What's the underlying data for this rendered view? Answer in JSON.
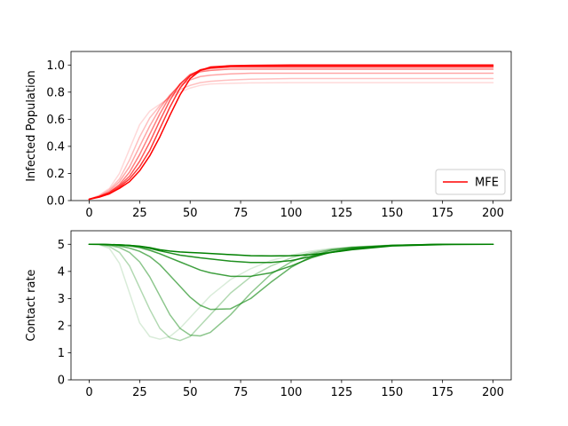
{
  "chart_data": [
    {
      "type": "line",
      "ylabel": "Infected Population",
      "xlim": [
        -9,
        209
      ],
      "ylim": [
        0,
        1.1
      ],
      "xticks": [
        0,
        25,
        50,
        75,
        100,
        125,
        150,
        175,
        200
      ],
      "yticks": [
        0.0,
        0.2,
        0.4,
        0.6,
        0.8,
        1.0
      ],
      "xtick_labels": [
        "0",
        "25",
        "50",
        "75",
        "100",
        "125",
        "150",
        "175",
        "200"
      ],
      "ytick_labels": [
        "0.0",
        "0.2",
        "0.4",
        "0.6",
        "0.8",
        "1.0"
      ],
      "legend": {
        "label": "MFE",
        "placement": "lower-right",
        "color": "#ff0000"
      },
      "series_color": "#ff0000",
      "series": [
        {
          "alpha": 0.15,
          "x": [
            0,
            5,
            10,
            15,
            20,
            25,
            30,
            35,
            40,
            45,
            50,
            55,
            60,
            70,
            80,
            100,
            125,
            150,
            175,
            200
          ],
          "y": [
            0.01,
            0.04,
            0.09,
            0.2,
            0.38,
            0.56,
            0.66,
            0.71,
            0.76,
            0.8,
            0.83,
            0.85,
            0.86,
            0.865,
            0.868,
            0.87,
            0.87,
            0.87,
            0.87,
            0.87
          ]
        },
        {
          "alpha": 0.25,
          "x": [
            0,
            5,
            10,
            15,
            20,
            25,
            30,
            35,
            40,
            45,
            50,
            55,
            60,
            70,
            80,
            100,
            125,
            150,
            175,
            200
          ],
          "y": [
            0.01,
            0.035,
            0.08,
            0.16,
            0.3,
            0.47,
            0.61,
            0.7,
            0.77,
            0.82,
            0.85,
            0.87,
            0.88,
            0.89,
            0.895,
            0.9,
            0.9,
            0.9,
            0.9,
            0.9
          ]
        },
        {
          "alpha": 0.35,
          "x": [
            0,
            5,
            10,
            15,
            20,
            25,
            30,
            35,
            40,
            45,
            50,
            55,
            60,
            70,
            80,
            100,
            125,
            150,
            175,
            200
          ],
          "y": [
            0.01,
            0.03,
            0.07,
            0.14,
            0.25,
            0.4,
            0.55,
            0.68,
            0.78,
            0.85,
            0.89,
            0.915,
            0.925,
            0.935,
            0.94,
            0.94,
            0.94,
            0.94,
            0.94,
            0.94
          ]
        },
        {
          "alpha": 0.5,
          "x": [
            0,
            5,
            10,
            15,
            20,
            25,
            30,
            35,
            40,
            45,
            50,
            55,
            60,
            70,
            80,
            100,
            125,
            150,
            175,
            200
          ],
          "y": [
            0.01,
            0.03,
            0.06,
            0.12,
            0.21,
            0.34,
            0.49,
            0.64,
            0.77,
            0.86,
            0.92,
            0.95,
            0.96,
            0.97,
            0.97,
            0.97,
            0.97,
            0.97,
            0.97,
            0.97
          ]
        },
        {
          "alpha": 0.65,
          "x": [
            0,
            5,
            10,
            15,
            20,
            25,
            30,
            35,
            40,
            45,
            50,
            55,
            60,
            70,
            80,
            100,
            125,
            150,
            175,
            200
          ],
          "y": [
            0.01,
            0.03,
            0.06,
            0.11,
            0.18,
            0.29,
            0.43,
            0.59,
            0.74,
            0.86,
            0.93,
            0.96,
            0.975,
            0.985,
            0.985,
            0.985,
            0.985,
            0.985,
            0.985,
            0.985
          ]
        },
        {
          "alpha": 0.8,
          "x": [
            0,
            5,
            10,
            15,
            20,
            25,
            30,
            35,
            40,
            45,
            50,
            55,
            60,
            70,
            80,
            100,
            125,
            150,
            175,
            200
          ],
          "y": [
            0.01,
            0.03,
            0.05,
            0.1,
            0.16,
            0.25,
            0.37,
            0.53,
            0.69,
            0.83,
            0.92,
            0.965,
            0.98,
            0.99,
            0.99,
            0.99,
            0.99,
            0.99,
            0.99,
            0.99
          ]
        },
        {
          "alpha": 1.0,
          "x": [
            0,
            5,
            10,
            15,
            20,
            25,
            30,
            35,
            40,
            45,
            50,
            55,
            60,
            70,
            80,
            100,
            125,
            150,
            175,
            200
          ],
          "y": [
            0.01,
            0.025,
            0.05,
            0.09,
            0.14,
            0.22,
            0.33,
            0.47,
            0.63,
            0.78,
            0.9,
            0.96,
            0.985,
            0.995,
            0.998,
            1.0,
            1.0,
            1.0,
            1.0,
            1.0
          ]
        }
      ]
    },
    {
      "type": "line",
      "ylabel": "Contact rate",
      "xlim": [
        -9,
        209
      ],
      "ylim": [
        0,
        5.5
      ],
      "xticks": [
        0,
        25,
        50,
        75,
        100,
        125,
        150,
        175,
        200
      ],
      "yticks": [
        0,
        1,
        2,
        3,
        4,
        5
      ],
      "xtick_labels": [
        "0",
        "25",
        "50",
        "75",
        "100",
        "125",
        "150",
        "175",
        "200"
      ],
      "ytick_labels": [
        "0",
        "1",
        "2",
        "3",
        "4",
        "5"
      ],
      "series_color": "#008000",
      "series": [
        {
          "alpha": 0.15,
          "x": [
            0,
            5,
            10,
            15,
            20,
            25,
            30,
            35,
            40,
            45,
            50,
            55,
            60,
            70,
            80,
            90,
            100,
            110,
            120,
            130,
            150,
            175,
            200
          ],
          "y": [
            5.0,
            4.98,
            4.85,
            4.3,
            3.2,
            2.1,
            1.6,
            1.5,
            1.6,
            1.9,
            2.3,
            2.7,
            3.1,
            3.7,
            4.1,
            4.4,
            4.6,
            4.75,
            4.85,
            4.9,
            4.97,
            5.0,
            5.0
          ]
        },
        {
          "alpha": 0.3,
          "x": [
            0,
            5,
            10,
            15,
            20,
            25,
            30,
            35,
            40,
            45,
            50,
            55,
            60,
            70,
            80,
            90,
            100,
            110,
            120,
            130,
            150,
            175,
            200
          ],
          "y": [
            5.0,
            4.99,
            4.92,
            4.7,
            4.2,
            3.4,
            2.6,
            1.9,
            1.55,
            1.45,
            1.6,
            2.0,
            2.4,
            3.2,
            3.8,
            4.2,
            4.5,
            4.7,
            4.82,
            4.9,
            4.97,
            5.0,
            5.0
          ]
        },
        {
          "alpha": 0.45,
          "x": [
            0,
            5,
            10,
            15,
            20,
            25,
            30,
            35,
            40,
            45,
            50,
            55,
            60,
            70,
            80,
            90,
            100,
            110,
            120,
            130,
            150,
            175,
            200
          ],
          "y": [
            5.0,
            5.0,
            4.96,
            4.88,
            4.7,
            4.35,
            3.8,
            3.1,
            2.4,
            1.9,
            1.65,
            1.62,
            1.75,
            2.4,
            3.2,
            3.9,
            4.35,
            4.65,
            4.8,
            4.88,
            4.96,
            5.0,
            5.0
          ]
        },
        {
          "alpha": 0.6,
          "x": [
            0,
            5,
            10,
            15,
            20,
            25,
            30,
            35,
            40,
            45,
            50,
            55,
            60,
            70,
            80,
            90,
            100,
            110,
            120,
            130,
            150,
            175,
            200
          ],
          "y": [
            5.0,
            5.0,
            4.98,
            4.94,
            4.86,
            4.74,
            4.55,
            4.25,
            3.85,
            3.45,
            3.05,
            2.75,
            2.6,
            2.62,
            3.0,
            3.6,
            4.15,
            4.55,
            4.78,
            4.88,
            4.96,
            5.0,
            5.0
          ]
        },
        {
          "alpha": 0.75,
          "x": [
            0,
            5,
            10,
            15,
            20,
            25,
            30,
            35,
            40,
            45,
            50,
            55,
            60,
            70,
            80,
            90,
            100,
            110,
            120,
            130,
            150,
            175,
            200
          ],
          "y": [
            5.0,
            5.0,
            4.99,
            4.97,
            4.94,
            4.88,
            4.78,
            4.65,
            4.5,
            4.35,
            4.2,
            4.05,
            3.95,
            3.82,
            3.82,
            3.95,
            4.2,
            4.5,
            4.72,
            4.85,
            4.96,
            5.0,
            5.0
          ]
        },
        {
          "alpha": 0.88,
          "x": [
            0,
            5,
            10,
            15,
            20,
            25,
            30,
            35,
            40,
            45,
            50,
            55,
            60,
            70,
            80,
            90,
            100,
            110,
            120,
            130,
            150,
            175,
            200
          ],
          "y": [
            5.0,
            5.0,
            4.99,
            4.98,
            4.96,
            4.92,
            4.85,
            4.76,
            4.68,
            4.6,
            4.55,
            4.5,
            4.46,
            4.38,
            4.33,
            4.33,
            4.4,
            4.55,
            4.7,
            4.82,
            4.95,
            5.0,
            5.0
          ]
        },
        {
          "alpha": 1.0,
          "x": [
            0,
            5,
            10,
            15,
            20,
            25,
            30,
            35,
            40,
            45,
            50,
            55,
            60,
            70,
            80,
            90,
            100,
            110,
            120,
            130,
            150,
            175,
            200
          ],
          "y": [
            5.0,
            5.0,
            4.99,
            4.98,
            4.96,
            4.93,
            4.88,
            4.8,
            4.75,
            4.72,
            4.7,
            4.68,
            4.66,
            4.62,
            4.58,
            4.57,
            4.58,
            4.62,
            4.7,
            4.8,
            4.94,
            4.99,
            5.0
          ]
        }
      ]
    }
  ]
}
